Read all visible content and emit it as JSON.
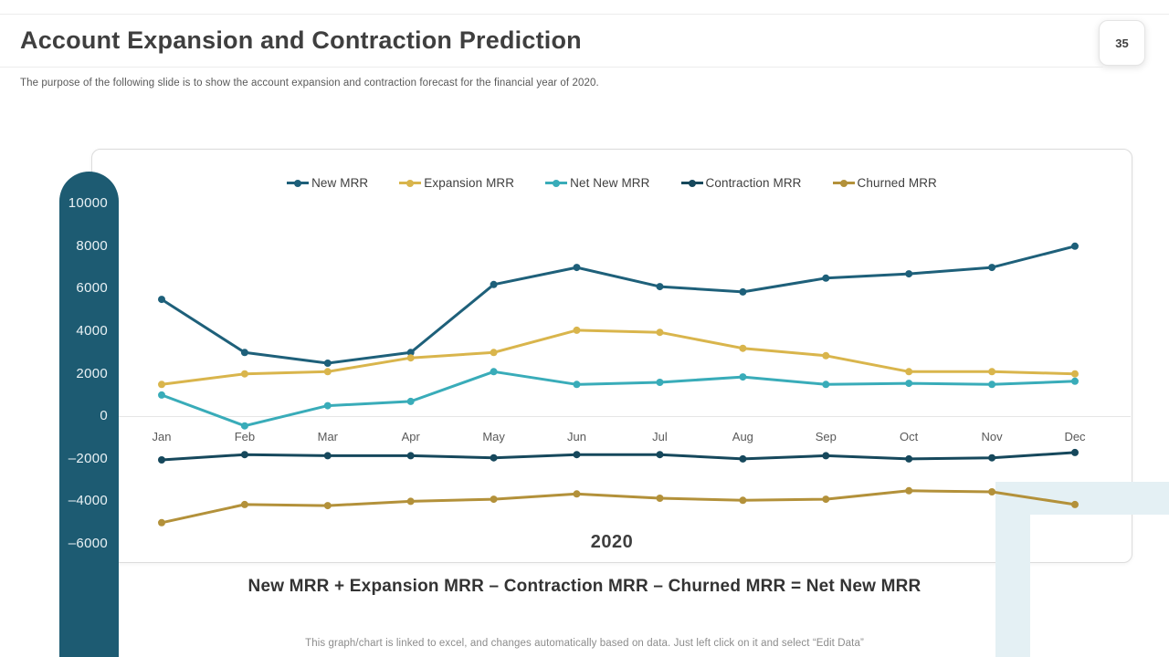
{
  "header": {
    "title": "Account Expansion and Contraction Prediction",
    "subtitle": "The purpose of the following slide is to show the account expansion and contraction forecast for the financial year of 2020.",
    "slide_number": "35"
  },
  "chart_data": {
    "type": "line",
    "title": "2020",
    "xlabel": "",
    "ylabel": "",
    "categories": [
      "Jan",
      "Feb",
      "Mar",
      "Apr",
      "May",
      "Jun",
      "Jul",
      "Aug",
      "Sep",
      "Oct",
      "Nov",
      "Dec"
    ],
    "y_ticks": [
      10000,
      8000,
      6000,
      4000,
      2000,
      0,
      -2000,
      -4000,
      -6000
    ],
    "ylim": [
      -6500,
      10500
    ],
    "grid": "zero-line-only",
    "legend_position": "top",
    "series": [
      {
        "name": "New MRR",
        "color": "#1E607A",
        "values": [
          5500,
          3000,
          2500,
          3000,
          6200,
          7000,
          6100,
          5850,
          6500,
          6700,
          7000,
          8000
        ]
      },
      {
        "name": "Expansion MRR",
        "color": "#D9B54C",
        "values": [
          1500,
          2000,
          2100,
          2750,
          3000,
          4050,
          3950,
          3200,
          2850,
          2100,
          2100,
          2000
        ]
      },
      {
        "name": "Net New MRR",
        "color": "#39ACB9",
        "values": [
          1000,
          -450,
          500,
          700,
          2100,
          1500,
          1600,
          1850,
          1500,
          1550,
          1500,
          1650
        ]
      },
      {
        "name": "Contraction MRR",
        "color": "#16485C",
        "values": [
          -2050,
          -1800,
          -1850,
          -1850,
          -1950,
          -1800,
          -1800,
          -2000,
          -1850,
          -2000,
          -1950,
          -1700
        ]
      },
      {
        "name": "Churned MRR",
        "color": "#B3913A",
        "values": [
          -5000,
          -4150,
          -4200,
          -4000,
          -3900,
          -3650,
          -3850,
          -3950,
          -3900,
          -3500,
          -3550,
          -4150
        ]
      }
    ],
    "period_label": "2020"
  },
  "formula_text": "New MRR + Expansion MRR – Contraction MRR – Churned MRR = Net New MRR",
  "footer_note": "This graph/chart is linked to excel, and changes automatically based on data. Just left click on it and select “Edit Data”",
  "colors": {
    "axis_pill": "#1D5B72",
    "axis_tick_text": "#EAF2F5",
    "deco_accent": "#E4F0F4",
    "zero_line": "#E6E6E6",
    "card_border": "#DCDCDC",
    "title_text": "#3F3F3F",
    "subtitle_text": "#595959",
    "footer_text": "#8C8C8C"
  }
}
